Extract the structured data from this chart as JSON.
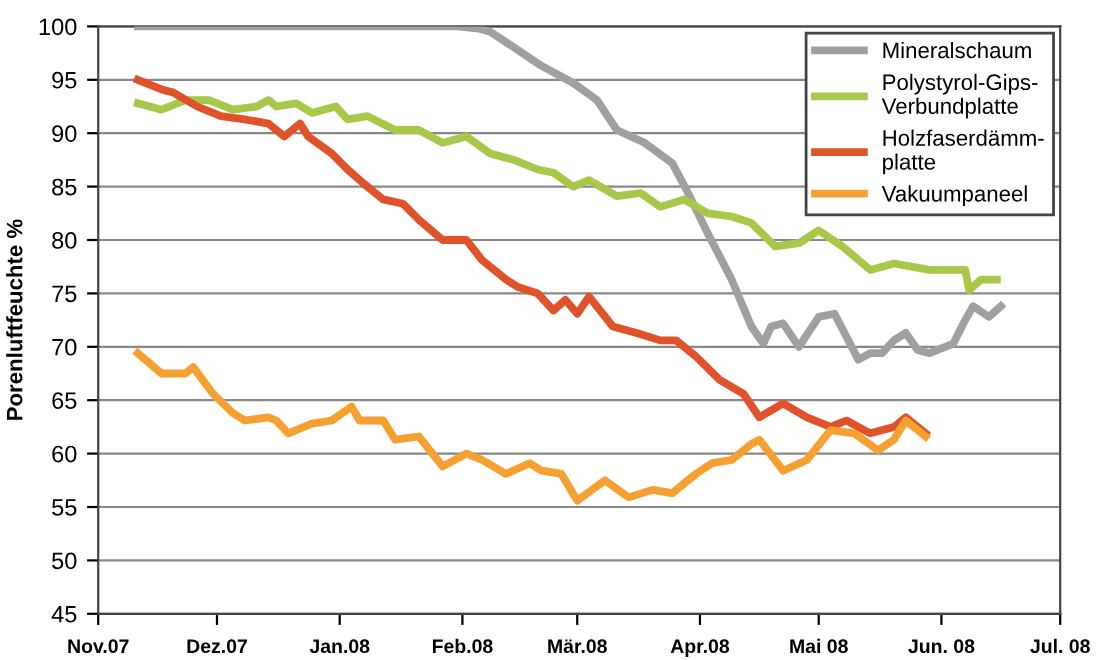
{
  "chart_data": {
    "type": "line",
    "ylabel": "Porenluftfeuchte %",
    "xlim": [
      "2007-11-01",
      "2008-07-01"
    ],
    "ylim": [
      45,
      100
    ],
    "yticks": [
      45,
      50,
      55,
      60,
      65,
      70,
      75,
      80,
      85,
      90,
      95,
      100
    ],
    "xticks": [
      {
        "value": "2007-11-01",
        "label": "Nov.07"
      },
      {
        "value": "2007-12-01",
        "label": "Dez.07"
      },
      {
        "value": "2008-01-01",
        "label": "Jan.08"
      },
      {
        "value": "2008-02-01",
        "label": "Feb.08"
      },
      {
        "value": "2008-03-01",
        "label": "Mär.08"
      },
      {
        "value": "2008-04-01",
        "label": "Apr.08"
      },
      {
        "value": "2008-05-01",
        "label": "Mai 08"
      },
      {
        "value": "2008-06-01",
        "label": "Jun. 08"
      },
      {
        "value": "2008-07-01",
        "label": "Jul. 08"
      }
    ],
    "grid": "y",
    "legend": "top right",
    "marker": "none",
    "line_style": "solid",
    "series": [
      {
        "name": "Mineralschaum",
        "color": "#a0a0a0",
        "x": [
          "2007-11-11",
          "2007-12-21",
          "2008-01-31",
          "2008-02-05",
          "2008-02-08",
          "2008-02-15",
          "2008-02-21",
          "2008-02-29",
          "2008-03-06",
          "2008-03-11",
          "2008-03-18",
          "2008-03-25",
          "2008-03-29",
          "2008-04-03",
          "2008-04-09",
          "2008-04-14",
          "2008-04-17",
          "2008-04-19",
          "2008-04-22",
          "2008-04-26",
          "2008-05-01",
          "2008-05-05",
          "2008-05-11",
          "2008-05-14",
          "2008-05-17",
          "2008-05-20",
          "2008-05-23",
          "2008-05-26",
          "2008-05-29",
          "2008-06-04",
          "2008-06-07",
          "2008-06-09",
          "2008-06-13",
          "2008-06-16"
        ],
        "values": [
          100,
          100,
          100,
          99.8,
          99.5,
          97.8,
          96.3,
          94.7,
          93.1,
          90.3,
          89.1,
          87.2,
          84.4,
          80.6,
          76.3,
          71.9,
          70.3,
          71.9,
          72.2,
          70.0,
          72.8,
          73.1,
          68.8,
          69.4,
          69.4,
          70.6,
          71.3,
          69.7,
          69.4,
          70.3,
          72.5,
          73.8,
          72.8,
          73.8
        ]
      },
      {
        "name": "Polystyrol-Gips-\nVerbundplatte",
        "color": "#a8c84a",
        "x": [
          "2007-11-11",
          "2007-11-17",
          "2007-11-23",
          "2007-11-29",
          "2007-12-05",
          "2007-12-11",
          "2007-12-14",
          "2007-12-16",
          "2007-12-21",
          "2007-12-25",
          "2007-12-31",
          "2008-01-03",
          "2008-01-08",
          "2008-01-15",
          "2008-01-21",
          "2008-01-27",
          "2008-02-02",
          "2008-02-08",
          "2008-02-14",
          "2008-02-20",
          "2008-02-24",
          "2008-02-29",
          "2008-03-04",
          "2008-03-11",
          "2008-03-17",
          "2008-03-22",
          "2008-03-28",
          "2008-04-03",
          "2008-04-09",
          "2008-04-14",
          "2008-04-20",
          "2008-04-26",
          "2008-05-01",
          "2008-05-07",
          "2008-05-14",
          "2008-05-20",
          "2008-05-29",
          "2008-06-07",
          "2008-06-08",
          "2008-06-11",
          "2008-06-15"
        ],
        "values": [
          92.8,
          92.2,
          93.1,
          93.1,
          92.2,
          92.5,
          93.1,
          92.5,
          92.8,
          91.9,
          92.5,
          91.3,
          91.6,
          90.3,
          90.3,
          89.1,
          89.7,
          88.1,
          87.5,
          86.6,
          86.3,
          85.0,
          85.6,
          84.1,
          84.4,
          83.1,
          83.8,
          82.5,
          82.2,
          81.6,
          79.4,
          79.7,
          80.9,
          79.4,
          77.2,
          77.8,
          77.2,
          77.2,
          75.3,
          76.3,
          76.3
        ]
      },
      {
        "name": "Holzfaserdämm-\nplatte",
        "color": "#e0522a",
        "x": [
          "2007-11-11",
          "2007-11-17",
          "2007-11-20",
          "2007-11-26",
          "2007-12-02",
          "2007-12-08",
          "2007-12-14",
          "2007-12-18",
          "2007-12-22",
          "2007-12-24",
          "2007-12-30",
          "2008-01-03",
          "2008-01-07",
          "2008-01-12",
          "2008-01-17",
          "2008-01-21",
          "2008-01-27",
          "2008-02-02",
          "2008-02-06",
          "2008-02-12",
          "2008-02-15",
          "2008-02-20",
          "2008-02-24",
          "2008-02-27",
          "2008-03-01",
          "2008-03-04",
          "2008-03-10",
          "2008-03-16",
          "2008-03-22",
          "2008-03-26",
          "2008-03-31",
          "2008-04-06",
          "2008-04-12",
          "2008-04-16",
          "2008-04-22",
          "2008-04-28",
          "2008-05-04",
          "2008-05-08",
          "2008-05-14",
          "2008-05-20",
          "2008-05-23",
          "2008-05-28"
        ],
        "values": [
          95.0,
          94.1,
          93.8,
          92.5,
          91.6,
          91.3,
          90.9,
          89.7,
          90.9,
          89.7,
          88.1,
          86.6,
          85.3,
          83.8,
          83.4,
          81.9,
          80.0,
          80.0,
          78.1,
          76.3,
          75.6,
          75.0,
          73.4,
          74.4,
          73.1,
          74.7,
          71.9,
          71.3,
          70.6,
          70.6,
          69.1,
          66.9,
          65.6,
          63.4,
          64.7,
          63.4,
          62.5,
          63.1,
          61.9,
          62.5,
          63.4,
          61.9
        ]
      },
      {
        "name": "Vakuumpaneel",
        "color": "#f5a030",
        "x": [
          "2007-11-11",
          "2007-11-17",
          "2007-11-23",
          "2007-11-25",
          "2007-11-30",
          "2007-12-05",
          "2007-12-08",
          "2007-12-14",
          "2007-12-16",
          "2007-12-19",
          "2007-12-25",
          "2007-12-30",
          "2008-01-04",
          "2008-01-06",
          "2008-01-12",
          "2008-01-15",
          "2008-01-21",
          "2008-01-27",
          "2008-02-02",
          "2008-02-06",
          "2008-02-12",
          "2008-02-18",
          "2008-02-21",
          "2008-02-26",
          "2008-03-01",
          "2008-03-08",
          "2008-03-14",
          "2008-03-20",
          "2008-03-25",
          "2008-03-31",
          "2008-04-04",
          "2008-04-09",
          "2008-04-14",
          "2008-04-16",
          "2008-04-22",
          "2008-04-28",
          "2008-05-04",
          "2008-05-10",
          "2008-05-16",
          "2008-05-20",
          "2008-05-23",
          "2008-05-28"
        ],
        "values": [
          69.4,
          67.5,
          67.5,
          68.1,
          65.6,
          63.8,
          63.1,
          63.4,
          63.1,
          61.9,
          62.8,
          63.1,
          64.4,
          63.1,
          63.1,
          61.3,
          61.6,
          58.8,
          60.0,
          59.4,
          58.1,
          59.1,
          58.4,
          58.1,
          55.6,
          57.5,
          55.9,
          56.6,
          56.3,
          58.1,
          59.1,
          59.4,
          60.9,
          61.3,
          58.4,
          59.4,
          62.2,
          61.9,
          60.3,
          61.3,
          63.1,
          61.6
        ]
      }
    ]
  }
}
